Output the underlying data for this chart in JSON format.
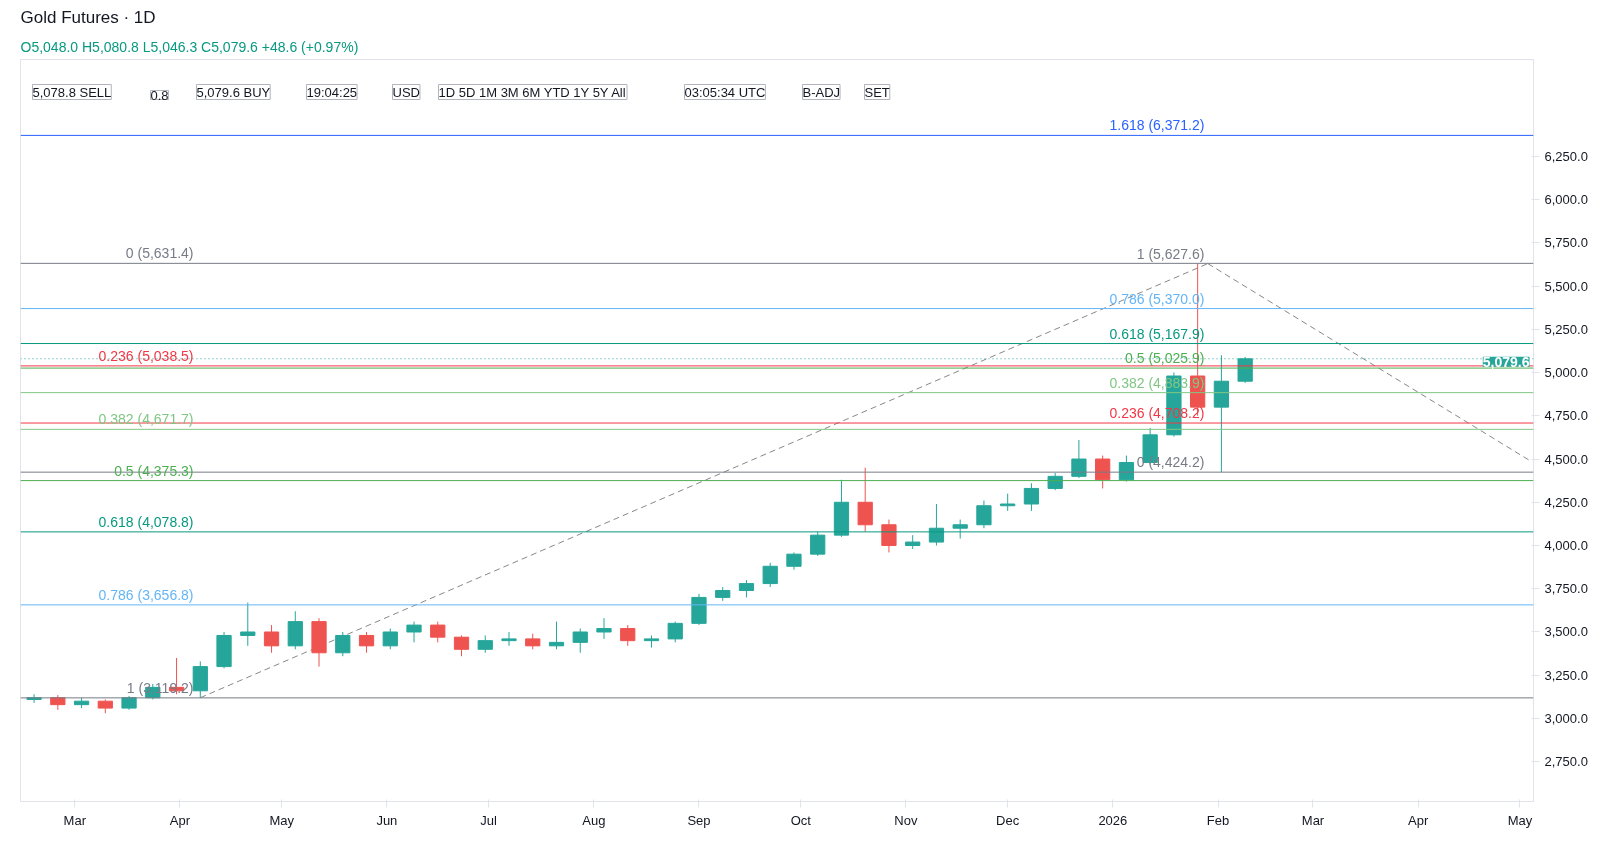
{
  "chart_data": {
    "type": "candlestick",
    "title": "Gold Futures · 1D",
    "subtitle": "O5,048.0 H5,080.8 L5,046.3 C5,079.6 +48.6 (+0.97%)",
    "x": [
      "2025-02-17",
      "2025-02-24",
      "2025-03-03",
      "2025-03-10",
      "2025-03-17",
      "2025-03-24",
      "2025-03-31",
      "2025-04-07",
      "2025-04-14",
      "2025-04-21",
      "2025-04-28",
      "2025-05-05",
      "2025-05-12",
      "2025-05-19",
      "2025-05-26",
      "2025-06-02",
      "2025-06-09",
      "2025-06-16",
      "2025-06-23",
      "2025-06-30",
      "2025-07-07",
      "2025-07-14",
      "2025-07-21",
      "2025-07-28",
      "2025-08-04",
      "2025-08-11",
      "2025-08-18",
      "2025-08-25",
      "2025-09-01",
      "2025-09-08",
      "2025-09-15",
      "2025-09-22",
      "2025-09-29",
      "2025-10-06",
      "2025-10-13",
      "2025-10-20",
      "2025-10-27",
      "2025-11-03",
      "2025-11-10",
      "2025-11-17",
      "2025-11-24",
      "2025-12-01",
      "2025-12-08",
      "2025-12-15",
      "2025-12-22",
      "2025-12-29",
      "2026-01-05",
      "2026-01-12",
      "2026-01-19",
      "2026-01-26",
      "2026-02-02",
      "2026-02-09"
    ],
    "ohlc": [
      [
        3110,
        3140,
        3090,
        3120
      ],
      [
        3120,
        3135,
        3050,
        3080
      ],
      [
        3080,
        3120,
        3060,
        3100
      ],
      [
        3100,
        3110,
        3030,
        3060
      ],
      [
        3060,
        3130,
        3050,
        3120
      ],
      [
        3120,
        3200,
        3110,
        3180
      ],
      [
        3180,
        3350,
        3140,
        3160
      ],
      [
        3160,
        3330,
        3119.2,
        3300
      ],
      [
        3300,
        3500,
        3290,
        3480
      ],
      [
        3480,
        3670,
        3420,
        3500
      ],
      [
        3500,
        3540,
        3380,
        3420
      ],
      [
        3420,
        3620,
        3400,
        3560
      ],
      [
        3560,
        3580,
        3300,
        3380
      ],
      [
        3380,
        3500,
        3360,
        3480
      ],
      [
        3480,
        3500,
        3380,
        3420
      ],
      [
        3420,
        3520,
        3400,
        3500
      ],
      [
        3500,
        3560,
        3440,
        3540
      ],
      [
        3540,
        3560,
        3440,
        3470
      ],
      [
        3470,
        3480,
        3360,
        3400
      ],
      [
        3400,
        3480,
        3380,
        3450
      ],
      [
        3450,
        3500,
        3420,
        3460
      ],
      [
        3460,
        3490,
        3400,
        3420
      ],
      [
        3420,
        3560,
        3400,
        3440
      ],
      [
        3440,
        3520,
        3380,
        3500
      ],
      [
        3500,
        3580,
        3460,
        3520
      ],
      [
        3520,
        3540,
        3420,
        3450
      ],
      [
        3450,
        3480,
        3410,
        3460
      ],
      [
        3460,
        3560,
        3440,
        3550
      ],
      [
        3550,
        3720,
        3540,
        3700
      ],
      [
        3700,
        3760,
        3680,
        3740
      ],
      [
        3740,
        3800,
        3700,
        3780
      ],
      [
        3780,
        3900,
        3760,
        3880
      ],
      [
        3880,
        3960,
        3860,
        3950
      ],
      [
        3950,
        4080,
        3940,
        4060
      ],
      [
        4060,
        4380,
        4050,
        4250
      ],
      [
        4250,
        4450,
        4080,
        4120
      ],
      [
        4120,
        4150,
        3960,
        4000
      ],
      [
        4000,
        4060,
        3980,
        4020
      ],
      [
        4020,
        4240,
        4000,
        4100
      ],
      [
        4100,
        4150,
        4040,
        4120
      ],
      [
        4120,
        4260,
        4100,
        4230
      ],
      [
        4230,
        4300,
        4200,
        4240
      ],
      [
        4240,
        4360,
        4200,
        4330
      ],
      [
        4330,
        4420,
        4320,
        4400
      ],
      [
        4400,
        4610,
        4390,
        4500
      ],
      [
        4500,
        4520,
        4330,
        4380
      ],
      [
        4380,
        4520,
        4370,
        4480
      ],
      [
        4480,
        4680,
        4470,
        4640
      ],
      [
        4640,
        5000,
        4630,
        4980
      ],
      [
        4980,
        5627.6,
        4750,
        4800
      ],
      [
        4800,
        5100,
        4424.2,
        4950
      ],
      [
        4950,
        5090,
        4940,
        5079.6
      ]
    ],
    "colors": [
      "#26a69a",
      "#ef5350",
      "#26a69a",
      "#ef5350",
      "#26a69a",
      "#26a69a",
      "#ef5350",
      "#26a69a",
      "#26a69a",
      "#26a69a",
      "#ef5350",
      "#26a69a",
      "#ef5350",
      "#26a69a",
      "#ef5350",
      "#26a69a",
      "#26a69a",
      "#ef5350",
      "#ef5350",
      "#26a69a",
      "#26a69a",
      "#ef5350",
      "#26a69a",
      "#26a69a",
      "#26a69a",
      "#ef5350",
      "#26a69a",
      "#26a69a",
      "#26a69a",
      "#26a69a",
      "#26a69a",
      "#26a69a",
      "#26a69a",
      "#26a69a",
      "#26a69a",
      "#ef5350",
      "#ef5350",
      "#26a69a",
      "#26a69a",
      "#26a69a",
      "#26a69a",
      "#26a69a",
      "#26a69a",
      "#26a69a",
      "#26a69a",
      "#ef5350",
      "#26a69a",
      "#26a69a",
      "#26a69a",
      "#ef5350",
      "#26a69a",
      "#26a69a"
    ],
    "series": [
      {
        "type": "line",
        "line_style": "dashed",
        "color": "#888888",
        "x": [
          "2025-04-07",
          "2026-01-29"
        ],
        "values": [
          3120,
          5630
        ]
      },
      {
        "type": "line",
        "line_style": "dashed",
        "color": "#888888",
        "x": [
          "2026-01-29",
          "2026-05-04"
        ],
        "values": [
          5630,
          4490
        ]
      }
    ],
    "xlim": [
      "2025-02-13",
      "2026-05-05"
    ],
    "xticks": [
      {
        "value": "2025-03-01",
        "label": "Mar"
      },
      {
        "value": "2025-04-01",
        "label": "Apr"
      },
      {
        "value": "2025-05-01",
        "label": "May"
      },
      {
        "value": "2025-06-01",
        "label": "Jun"
      },
      {
        "value": "2025-07-01",
        "label": "Jul"
      },
      {
        "value": "2025-08-01",
        "label": "Aug"
      },
      {
        "value": "2025-09-01",
        "label": "Sep"
      },
      {
        "value": "2025-10-01",
        "label": "Oct"
      },
      {
        "value": "2025-11-01",
        "label": "Nov"
      },
      {
        "value": "2025-12-01",
        "label": "Dec"
      },
      {
        "value": "2026-01-01",
        "label": "2026"
      },
      {
        "value": "2026-02-01",
        "label": "Feb"
      },
      {
        "value": "2026-03-01",
        "label": "Mar"
      },
      {
        "value": "2026-04-01",
        "label": "Apr"
      },
      {
        "value": "2026-05-01",
        "label": "May"
      }
    ],
    "ylim": [
      2520,
      6810
    ],
    "yticks": [
      {
        "value": 2750,
        "label": "2,750.0"
      },
      {
        "value": 3000,
        "label": "3,000.0"
      },
      {
        "value": 3250,
        "label": "3,250.0"
      },
      {
        "value": 3500,
        "label": "3,500.0"
      },
      {
        "value": 3750,
        "label": "3,750.0"
      },
      {
        "value": 4000,
        "label": "4,000.0"
      },
      {
        "value": 4250,
        "label": "4,250.0"
      },
      {
        "value": 4500,
        "label": "4,500.0"
      },
      {
        "value": 4750,
        "label": "4,750.0"
      },
      {
        "value": 5000,
        "label": "5,000.0"
      },
      {
        "value": 5250,
        "label": "5,250.0"
      },
      {
        "value": 5500,
        "label": "5,500.0"
      },
      {
        "value": 5750,
        "label": "5,750.0"
      },
      {
        "value": 6000,
        "label": "6,000.0"
      },
      {
        "value": 6250,
        "label": "6,250.0"
      }
    ],
    "ref_lines": [
      {
        "axis": "y",
        "value": 5631.4,
        "color": "#787b86"
      },
      {
        "axis": "y",
        "value": 5038.5,
        "color": "#f23645"
      },
      {
        "axis": "y",
        "value": 4671.7,
        "color": "#81c784"
      },
      {
        "axis": "y",
        "value": 4375.3,
        "color": "#4caf50"
      },
      {
        "axis": "y",
        "value": 4078.8,
        "color": "#089981"
      },
      {
        "axis": "y",
        "value": 3656.8,
        "color": "#64b5f6"
      },
      {
        "axis": "y",
        "value": 3119.2,
        "color": "#787b86"
      },
      {
        "axis": "y",
        "value": 6371.2,
        "color": "#2962ff"
      },
      {
        "axis": "y",
        "value": 5370.0,
        "color": "#64b5f6"
      },
      {
        "axis": "y",
        "value": 5167.9,
        "color": "#089981"
      },
      {
        "axis": "y",
        "value": 5025.9,
        "color": "#4caf50"
      },
      {
        "axis": "y",
        "value": 4883.9,
        "color": "#81c784"
      },
      {
        "axis": "y",
        "value": 4708.2,
        "color": "#f23645"
      },
      {
        "axis": "y",
        "value": 4424.2,
        "color": "#787b86"
      },
      {
        "axis": "y",
        "value": 5079.6,
        "color": "#26a69a",
        "line_style": "dotted",
        "label": "5,079.6"
      }
    ],
    "annotations": [
      {
        "text": "0 (5,631.4)",
        "x": "2025-04-05",
        "y": 5631.4
      },
      {
        "text": "0.236 (5,038.5)",
        "x": "2025-04-05",
        "y": 5038.5
      },
      {
        "text": "0.382 (4,671.7)",
        "x": "2025-04-05",
        "y": 4671.7
      },
      {
        "text": "0.5 (4,375.3)",
        "x": "2025-04-05",
        "y": 4375.3
      },
      {
        "text": "0.618 (4,078.8)",
        "x": "2025-04-05",
        "y": 4078.8
      },
      {
        "text": "0.786 (3,656.8)",
        "x": "2025-04-05",
        "y": 3656.8
      },
      {
        "text": "1 (3,119.2)",
        "x": "2025-04-05",
        "y": 3119.2
      },
      {
        "text": "1.618 (6,371.2)",
        "x": "2026-01-28",
        "y": 6371.2
      },
      {
        "text": "1 (5,627.6)",
        "x": "2026-01-28",
        "y": 5627.6
      },
      {
        "text": "0.786 (5,370.0)",
        "x": "2026-01-28",
        "y": 5370.0
      },
      {
        "text": "0.618 (5,167.9)",
        "x": "2026-01-28",
        "y": 5167.9
      },
      {
        "text": "0.5 (5,025.9)",
        "x": "2026-01-28",
        "y": 5025.9
      },
      {
        "text": "0.382 (4,883.9)",
        "x": "2026-01-28",
        "y": 4883.9
      },
      {
        "text": "0.236 (4,708.2)",
        "x": "2026-01-28",
        "y": 4708.2
      },
      {
        "text": "0 (4,424.2)",
        "x": "2026-01-28",
        "y": 4424.2
      },
      "5,078.8 SELL",
      "0.8",
      "5,079.6 BUY",
      "19:04:25",
      "USD",
      "1D 5D 1M 3M 6M YTD 1Y 5Y All",
      "03:05:34 UTC",
      "B-ADJ",
      "SET"
    ]
  }
}
